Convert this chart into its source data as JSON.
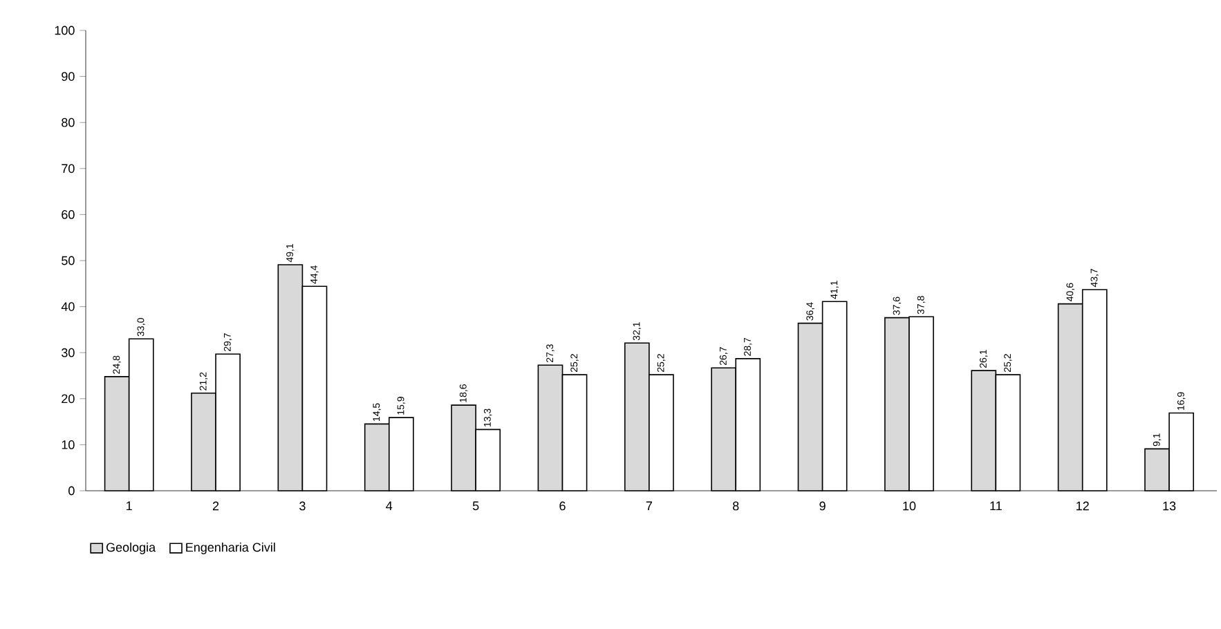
{
  "chart_data": {
    "type": "bar",
    "categories": [
      "1",
      "2",
      "3",
      "4",
      "5",
      "6",
      "7",
      "8",
      "9",
      "10",
      "11",
      "12",
      "13"
    ],
    "series": [
      {
        "name": "Geologia",
        "color": "#d9d9d9",
        "values": [
          24.8,
          21.2,
          49.1,
          14.5,
          18.6,
          27.3,
          32.1,
          26.7,
          36.4,
          37.6,
          26.1,
          40.6,
          9.1
        ],
        "value_labels": [
          "24,8",
          "21,2",
          "49,1",
          "14,5",
          "18,6",
          "27,3",
          "32,1",
          "26,7",
          "36,4",
          "37,6",
          "26,1",
          "40,6",
          "9,1"
        ]
      },
      {
        "name": "Engenharia Civil",
        "color": "#ffffff",
        "values": [
          33.0,
          29.7,
          44.4,
          15.9,
          13.3,
          25.2,
          25.2,
          28.7,
          41.1,
          37.8,
          25.2,
          43.7,
          16.9
        ],
        "value_labels": [
          "33,0",
          "29,7",
          "44,4",
          "15,9",
          "13,3",
          "25,2",
          "25,2",
          "28,7",
          "41,1",
          "37,8",
          "25,2",
          "43,7",
          "16,9"
        ]
      }
    ],
    "ylim": [
      0,
      100
    ],
    "yticks": [
      0,
      10,
      20,
      30,
      40,
      50,
      60,
      70,
      80,
      90,
      100
    ],
    "grid": false,
    "legend": "bottom left"
  }
}
